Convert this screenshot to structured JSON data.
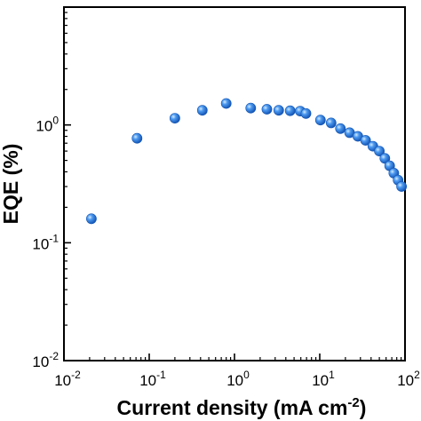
{
  "chart_data": {
    "type": "scatter",
    "title": "",
    "xlabel": "Current density (mA cm",
    "xlabel_sup": "-2",
    "xlabel_close": ")",
    "ylabel": "EQE (%)",
    "x_scale": "log",
    "y_scale": "log",
    "xlim": [
      0.01,
      100
    ],
    "ylim": [
      0.01,
      10
    ],
    "grid": false,
    "legend": "none",
    "x_ticks": [
      {
        "base": "10",
        "exp": "-2"
      },
      {
        "base": "10",
        "exp": "-1"
      },
      {
        "base": "10",
        "exp": "0"
      },
      {
        "base": "10",
        "exp": "1"
      },
      {
        "base": "10",
        "exp": "2"
      }
    ],
    "y_ticks": [
      {
        "base": "10",
        "exp": "-2"
      },
      {
        "base": "10",
        "exp": "-1"
      },
      {
        "base": "10",
        "exp": "0"
      }
    ],
    "series": [
      {
        "marker_color": "#2a7ee0",
        "x": [
          0.021,
          0.072,
          0.2,
          0.42,
          0.8,
          1.55,
          2.4,
          3.3,
          4.5,
          5.9,
          6.9,
          10.2,
          13.6,
          17.5,
          22.4,
          28.0,
          34.5,
          42.0,
          50.0,
          58.0,
          66.0,
          74.0,
          83.0,
          91.0
        ],
        "y": [
          0.16,
          0.77,
          1.14,
          1.33,
          1.52,
          1.39,
          1.36,
          1.33,
          1.32,
          1.31,
          1.25,
          1.1,
          1.04,
          0.93,
          0.86,
          0.8,
          0.74,
          0.66,
          0.6,
          0.52,
          0.45,
          0.39,
          0.34,
          0.3
        ]
      }
    ]
  }
}
